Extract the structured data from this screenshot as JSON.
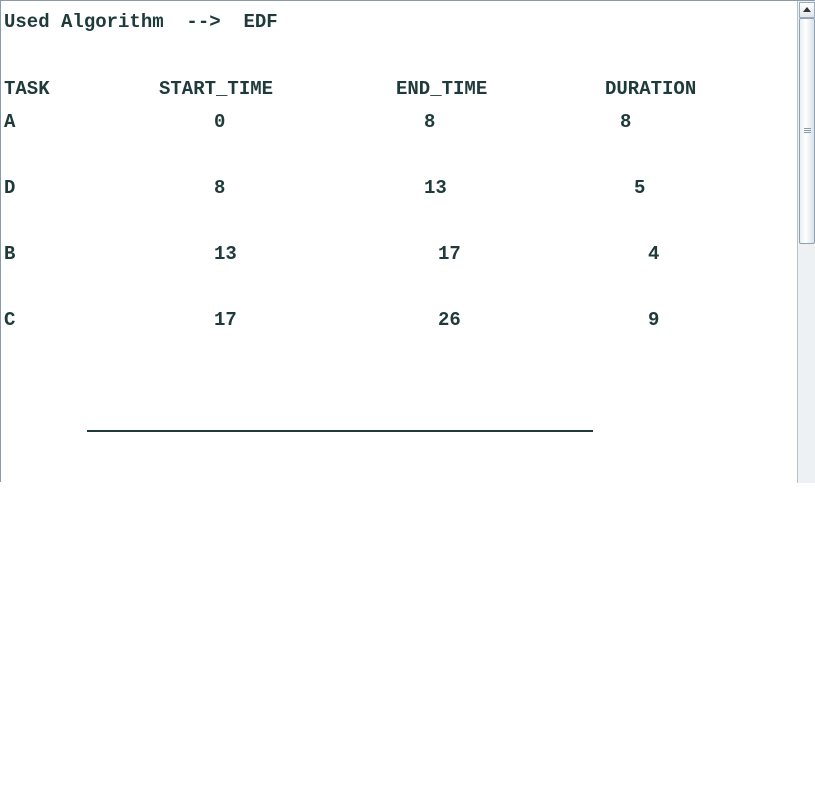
{
  "output": {
    "header_line": "Used Algorithm  -->  EDF",
    "columns": [
      "TASK",
      "START_TIME",
      "END_TIME",
      "DURATION"
    ],
    "rows": [
      {
        "task": "A",
        "start": "0",
        "end": "8",
        "duration": "8"
      },
      {
        "task": "D",
        "start": "8",
        "end": "13",
        "duration": "5"
      },
      {
        "task": "B",
        "start": "13",
        "end": "17",
        "duration": "4"
      },
      {
        "task": "C",
        "start": "17",
        "end": "26",
        "duration": "9"
      }
    ]
  },
  "scrollbar": {
    "up_icon": "arrow-up-icon",
    "thumb_icon": "grip-icon"
  },
  "colors": {
    "text": "#1f3a3a",
    "background": "#ffffff"
  }
}
